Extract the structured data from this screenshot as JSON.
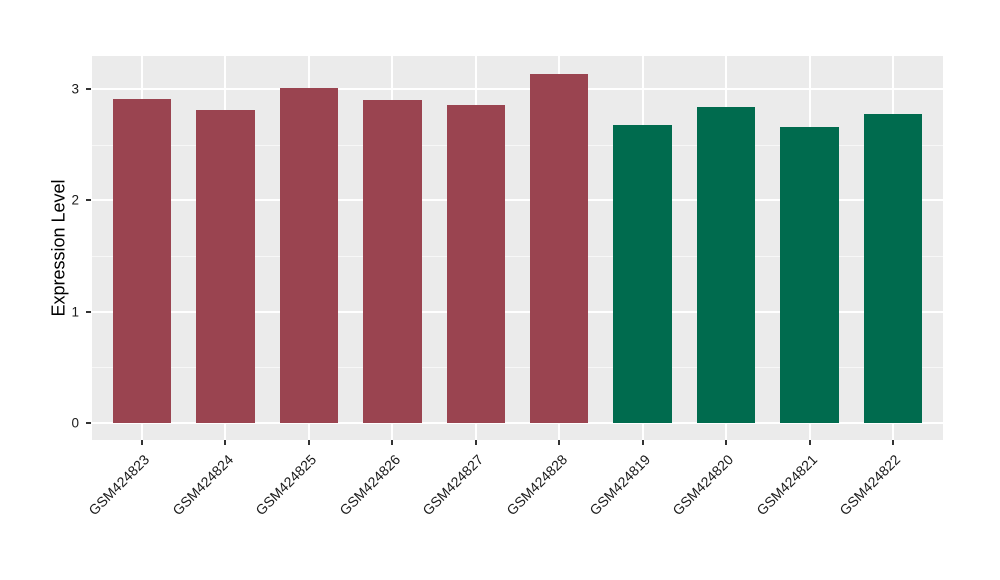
{
  "chart_data": {
    "type": "bar",
    "title": "",
    "xlabel": "",
    "ylabel": "Expression Level",
    "categories": [
      "GSM424823",
      "GSM424824",
      "GSM424825",
      "GSM424826",
      "GSM424827",
      "GSM424828",
      "GSM424819",
      "GSM424820",
      "GSM424821",
      "GSM424822"
    ],
    "values": [
      2.91,
      2.81,
      3.01,
      2.9,
      2.86,
      3.14,
      2.68,
      2.84,
      2.66,
      2.78
    ],
    "bar_colors": [
      "#9A4450",
      "#9A4450",
      "#9A4450",
      "#9A4450",
      "#9A4450",
      "#9A4450",
      "#006B4E",
      "#006B4E",
      "#006B4E",
      "#006B4E"
    ],
    "ytick_labels": [
      "0",
      "1",
      "2",
      "3"
    ],
    "ytick_values": [
      0,
      1,
      2,
      3
    ],
    "minor_tick_values": [
      0.5,
      1.5,
      2.5
    ],
    "ylim": [
      -0.155,
      3.3
    ],
    "legend_position": "none",
    "grid": "horizontal major+minor, vertical major at category centers",
    "x_tick_angle_deg": 45,
    "layout_hints": {
      "bar_width_fraction": 0.7,
      "x_edge_expand_units": 0.6
    },
    "colors": {
      "panel_background": "#EBEBEB",
      "figure_background": "#FFFFFF",
      "grid_major": "#FFFFFF",
      "grid_minor": "#F7F7F7",
      "axis_tick": "#333333",
      "axis_text": "#1A1A1A",
      "bar_group_left": "#9A4450",
      "bar_group_right": "#006B4E"
    }
  }
}
